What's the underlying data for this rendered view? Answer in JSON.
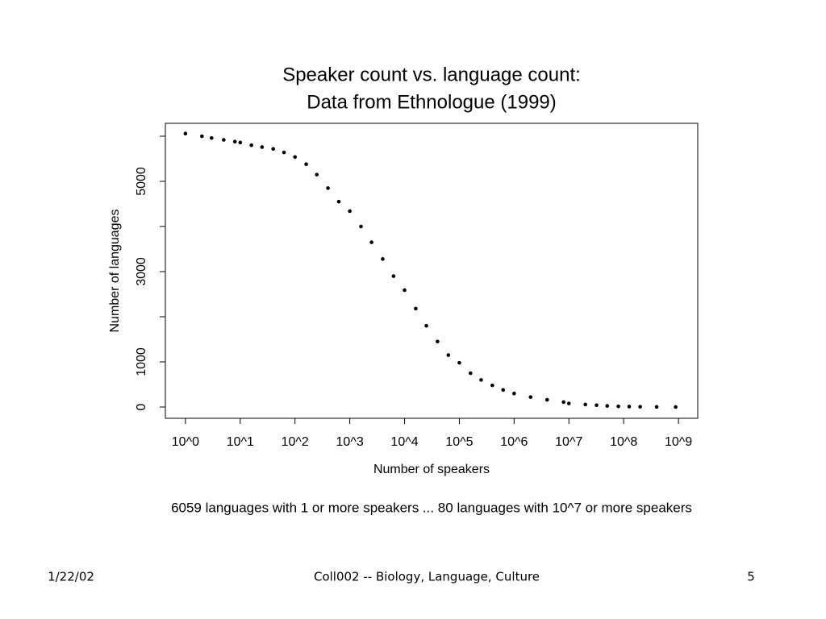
{
  "chart_data": {
    "type": "scatter",
    "title": "Speaker count vs. language count:",
    "subtitle": "Data from Ethnologue (1999)",
    "x_label": "Number of speakers",
    "y_label": "Number of languages",
    "annotation": "6059 languages with 1 or more speakers ... 80 languages with 10^7 or more speakers",
    "log_x": true,
    "color": "#000000",
    "x": [
      1,
      2,
      3,
      5,
      8,
      10,
      16,
      25,
      40,
      63,
      100,
      160,
      250,
      400,
      630,
      1000,
      1600,
      2500,
      4000,
      6300,
      10000,
      16000,
      25000,
      40000,
      63000,
      100000,
      160000,
      250000,
      400000,
      630000,
      1000000,
      2000000,
      4000000,
      8000000,
      10000000,
      20000000,
      32000000,
      50000000,
      80000000,
      126000000,
      200000000,
      400000000,
      890000000
    ],
    "values": [
      6059,
      6000,
      5960,
      5920,
      5880,
      5860,
      5800,
      5760,
      5720,
      5640,
      5540,
      5380,
      5150,
      4850,
      4550,
      4340,
      4000,
      3650,
      3280,
      2900,
      2590,
      2180,
      1800,
      1450,
      1150,
      980,
      750,
      600,
      480,
      380,
      300,
      220,
      160,
      110,
      80,
      55,
      40,
      25,
      15,
      10,
      6,
      3,
      1
    ],
    "xlim": [
      0.43,
      2250000000
    ],
    "ylim": [
      -250,
      6286
    ],
    "xticks": [
      {
        "value": 1,
        "label": "10^0"
      },
      {
        "value": 10,
        "label": "10^1"
      },
      {
        "value": 100,
        "label": "10^2"
      },
      {
        "value": 1000,
        "label": "10^3"
      },
      {
        "value": 10000,
        "label": "10^4"
      },
      {
        "value": 100000,
        "label": "10^5"
      },
      {
        "value": 1000000,
        "label": "10^6"
      },
      {
        "value": 10000000,
        "label": "10^7"
      },
      {
        "value": 100000000,
        "label": "10^8"
      },
      {
        "value": 1000000000,
        "label": "10^9"
      }
    ],
    "yticks": [
      0,
      1000,
      {
        "value": 2000,
        "label": null
      },
      3000,
      {
        "value": 4000,
        "label": null
      },
      5000,
      {
        "value": 6000,
        "label": null
      }
    ]
  },
  "footer": {
    "date": "1/22/02",
    "center": "Coll002 -- Biology, Language, Culture",
    "page": "5"
  }
}
